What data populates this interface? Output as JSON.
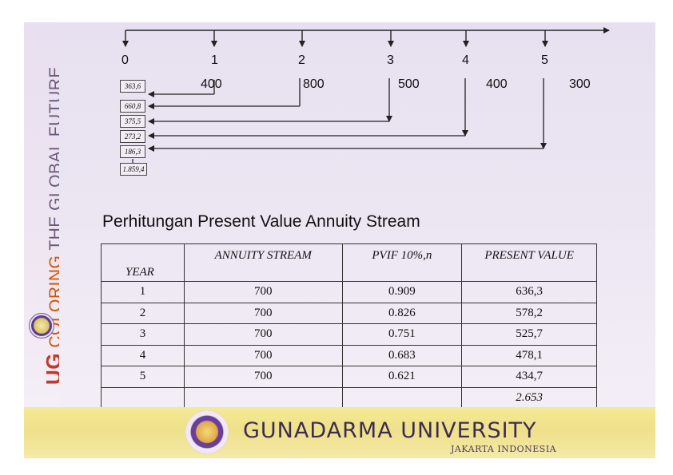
{
  "banner": {
    "ug": "UG",
    "coloring": "COLORING",
    "rest": " THE GLOBAL FUTURE",
    "seal_icon": "university-seal-icon"
  },
  "timeline": {
    "periods": [
      "0",
      "1",
      "2",
      "3",
      "4",
      "5"
    ],
    "cash_flows": [
      "400",
      "800",
      "500",
      "400",
      "300"
    ],
    "present_values": [
      "363,6",
      "660,8",
      "375,5",
      "273,2",
      "186,3",
      "1.859,4"
    ]
  },
  "section_title": "Perhitungan Present Value Annuity Stream",
  "table": {
    "headers": {
      "year": "YEAR",
      "annuity": "ANNUITY STREAM",
      "pvif": "PVIF 10%,n",
      "pv": "PRESENT VALUE"
    },
    "rows": [
      {
        "year": "1",
        "annuity": "700",
        "pvif": "0.909",
        "pv": "636,3"
      },
      {
        "year": "2",
        "annuity": "700",
        "pvif": "0.826",
        "pv": "578,2"
      },
      {
        "year": "3",
        "annuity": "700",
        "pvif": "0.751",
        "pv": "525,7"
      },
      {
        "year": "4",
        "annuity": "700",
        "pvif": "0.683",
        "pv": "478,1"
      },
      {
        "year": "5",
        "annuity": "700",
        "pvif": "0.621",
        "pv": "434,7"
      }
    ],
    "total": "2.653"
  },
  "footer": {
    "title": "GUNADARMA UNIVERSITY",
    "subtitle": "JAKARTA INDONESIA",
    "seal_icon": "gunadarma-seal-icon"
  },
  "colors": {
    "banner_accent": "#c0392b",
    "footer_bg": "#efe08a",
    "slide_bg": "#ece6f3"
  }
}
